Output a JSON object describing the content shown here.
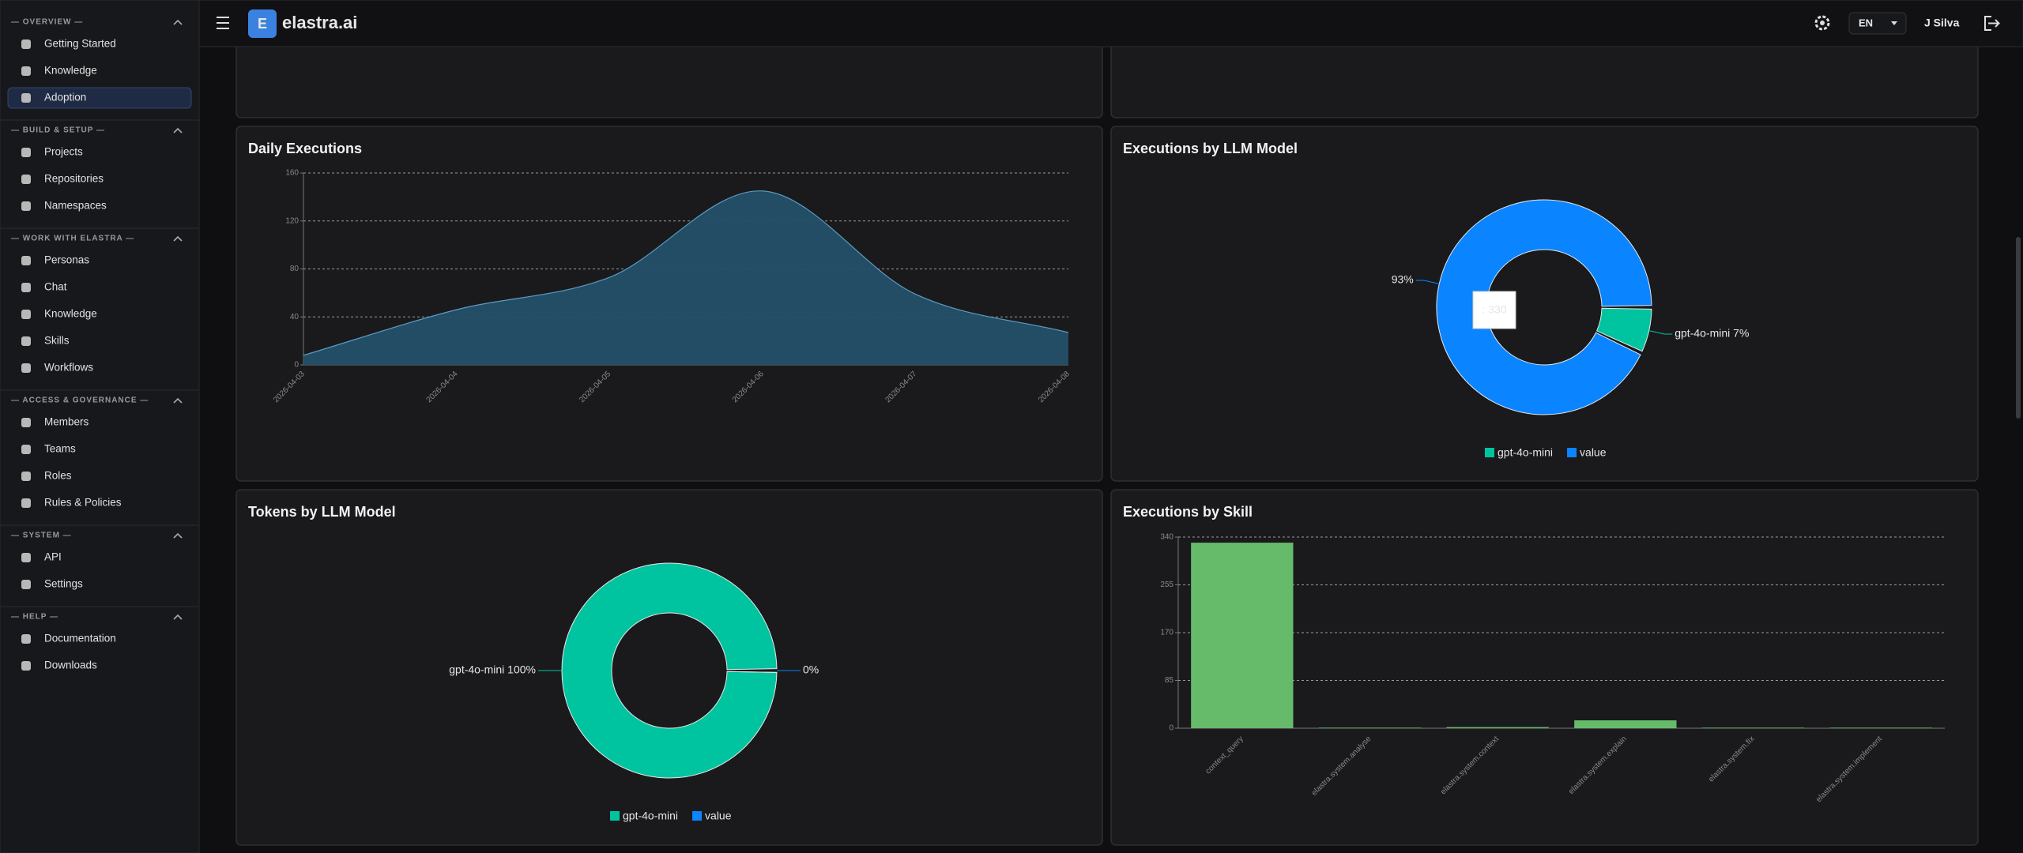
{
  "sidebar": {
    "sections": [
      {
        "title": "— OVERVIEW —",
        "items": [
          "Getting Started",
          "Knowledge",
          "Adoption"
        ]
      },
      {
        "title": "— BUILD & SETUP —",
        "items": [
          "Projects",
          "Repositories",
          "Namespaces"
        ]
      },
      {
        "title": "— WORK WITH ELASTRA —",
        "items": [
          "Personas",
          "Chat",
          "Knowledge",
          "Skills",
          "Workflows"
        ]
      },
      {
        "title": "— ACCESS & GOVERNANCE —",
        "items": [
          "Members",
          "Teams",
          "Roles",
          "Rules & Policies"
        ]
      },
      {
        "title": "— SYSTEM —",
        "items": [
          "API",
          "Settings"
        ]
      },
      {
        "title": "— HELP —",
        "items": [
          "Documentation",
          "Downloads"
        ]
      }
    ]
  },
  "header": {
    "logo_letter": "E",
    "brand": "elastra.ai",
    "language": "EN",
    "user": "J Silva"
  },
  "chart_data": [
    {
      "type": "area",
      "title": "Daily Executions",
      "x": [
        "2026-04-03",
        "2026-04-04",
        "2026-04-05",
        "2026-04-06",
        "2026-04-07",
        "2026-04-08"
      ],
      "values": [
        8,
        46,
        73,
        145,
        59,
        27
      ],
      "ylim": [
        0,
        160
      ],
      "yticks": [
        0,
        40,
        80,
        120,
        160
      ],
      "grid": true,
      "color": "#245069"
    },
    {
      "type": "donut",
      "title": "Executions by LLM Model",
      "categories": [
        "gpt-4o-mini",
        "value"
      ],
      "values": [
        7,
        93
      ],
      "value_labels": [
        "gpt-4o-mini 7%",
        "93%"
      ],
      "colors": [
        "#00c49f",
        "#0a84ff"
      ],
      "tooltip": ": 330"
    },
    {
      "type": "donut",
      "title": "Tokens by LLM Model",
      "categories": [
        "gpt-4o-mini",
        "value"
      ],
      "values": [
        100,
        0
      ],
      "value_labels": [
        "gpt-4o-mini 100%",
        "0%"
      ],
      "colors": [
        "#00c49f",
        "#0a84ff"
      ]
    },
    {
      "type": "bar",
      "title": "Executions by Skill",
      "categories": [
        "context_query",
        "elastra.system.analyse",
        "elastra.system.context",
        "elastra.system.explain",
        "elastra.system.fix",
        "elastra.system.implement"
      ],
      "values": [
        330,
        1,
        2,
        14,
        1,
        1
      ],
      "ylim": [
        0,
        340
      ],
      "yticks": [
        0,
        85,
        170,
        255,
        340
      ],
      "grid": true,
      "color": "#66bb6a"
    }
  ]
}
